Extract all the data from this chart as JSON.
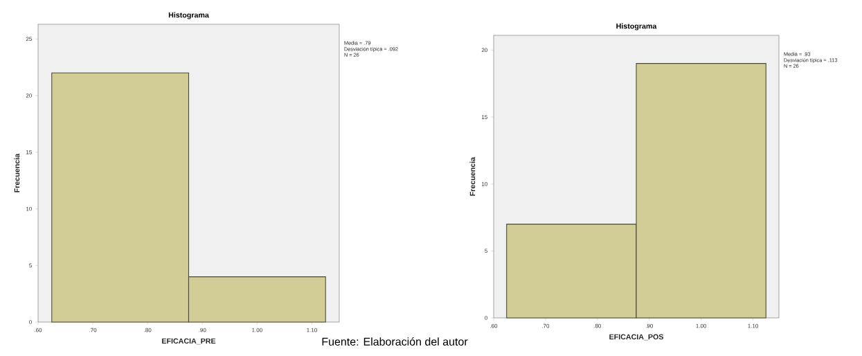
{
  "chart_data": [
    {
      "type": "histogram",
      "title": "Histograma",
      "xlabel": "EFICACIA_PRE",
      "ylabel": "Frecuencia",
      "bins": [
        0.625,
        0.875,
        1.125
      ],
      "values": [
        22,
        4
      ],
      "color": "#d2cd96",
      "xlim": [
        0.6,
        1.15
      ],
      "ylim": [
        0,
        26.3
      ],
      "xticks": [
        {
          "value": 0.6,
          "label": ".60"
        },
        {
          "value": 0.7,
          "label": ".70"
        },
        {
          "value": 0.8,
          "label": ".80"
        },
        {
          "value": 0.9,
          "label": ".90"
        },
        {
          "value": 1.0,
          "label": "1.00"
        },
        {
          "value": 1.1,
          "label": "1.10"
        }
      ],
      "yticks": [
        0,
        5,
        10,
        15,
        20,
        25
      ],
      "annotations": [
        "Media = .79",
        "Desviación típica = .092",
        "N = 26"
      ]
    },
    {
      "type": "histogram",
      "title": "Histograma",
      "xlabel": "EFICACIA_POS",
      "ylabel": "Frecuencia",
      "bins": [
        0.625,
        0.875,
        1.125
      ],
      "values": [
        7,
        19
      ],
      "color": "#d2cd96",
      "xlim": [
        0.6,
        1.15
      ],
      "ylim": [
        0,
        21.1
      ],
      "xticks": [
        {
          "value": 0.6,
          "label": ".60"
        },
        {
          "value": 0.7,
          "label": ".70"
        },
        {
          "value": 0.8,
          "label": ".80"
        },
        {
          "value": 0.9,
          "label": ".90"
        },
        {
          "value": 1.0,
          "label": "1.00"
        },
        {
          "value": 1.1,
          "label": "1.10"
        }
      ],
      "yticks": [
        0,
        5,
        10,
        15,
        20
      ],
      "annotations": [
        "Media = .93",
        "Desviación típica = .113",
        "N = 26",
        "Fuente: Elaboración del autor"
      ]
    }
  ]
}
